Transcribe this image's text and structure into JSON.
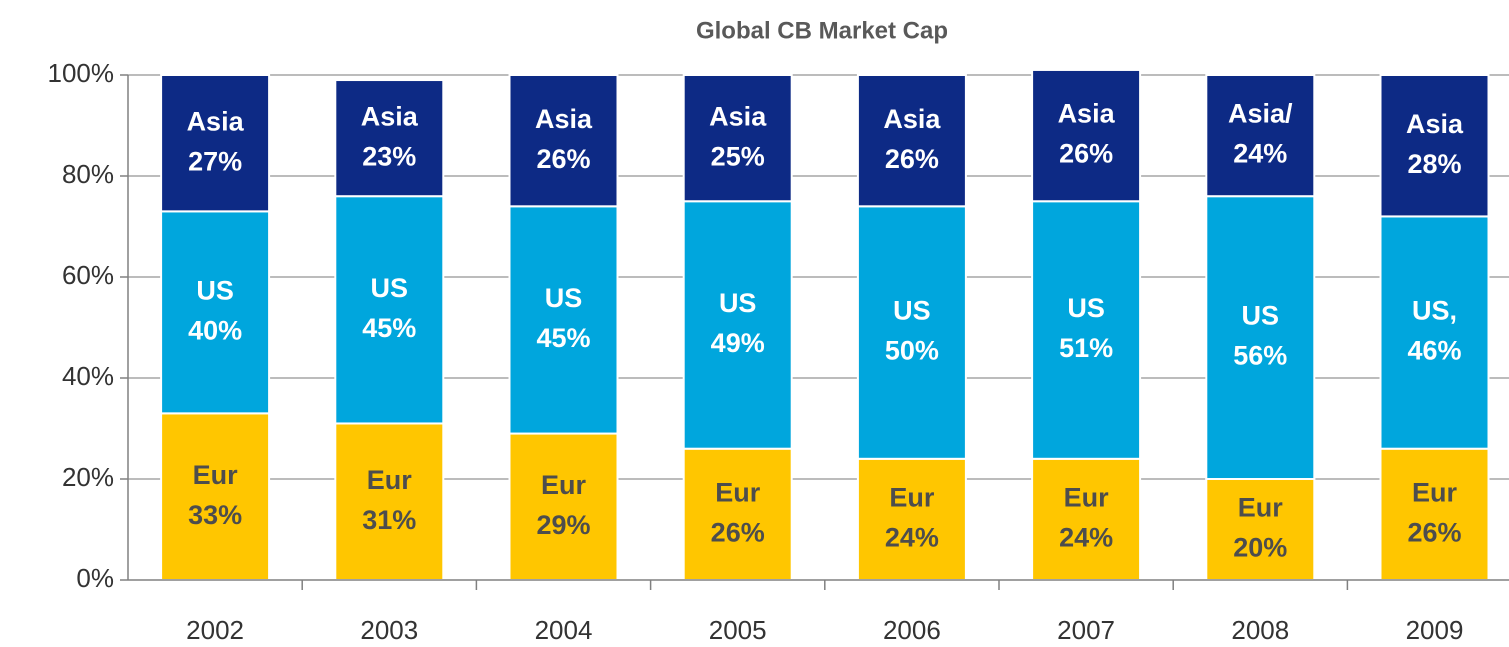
{
  "chart_data": {
    "type": "stacked_bar",
    "title": "Global CB Market Cap",
    "categories": [
      "2002",
      "2003",
      "2004",
      "2005",
      "2006",
      "2007",
      "2008",
      "2009"
    ],
    "series": [
      {
        "color": "#ffc600",
        "label_color": "#4d4d4d",
        "values": [
          33,
          31,
          29,
          26,
          24,
          24,
          20,
          26
        ],
        "value_labels": [
          [
            "Eur",
            "33%"
          ],
          [
            "Eur",
            "31%"
          ],
          [
            "Eur",
            "29%"
          ],
          [
            "Eur",
            "26%"
          ],
          [
            "Eur",
            "24%"
          ],
          [
            "Eur",
            "24%"
          ],
          [
            "Eur",
            "20%"
          ],
          [
            "Eur",
            "26%"
          ]
        ]
      },
      {
        "color": "#00a6dd",
        "label_color": "#ffffff",
        "values": [
          40,
          45,
          45,
          49,
          50,
          51,
          56,
          46
        ],
        "value_labels": [
          [
            "US",
            "40%"
          ],
          [
            "US",
            "45%"
          ],
          [
            "US",
            "45%"
          ],
          [
            "US",
            "49%"
          ],
          [
            "US",
            "50%"
          ],
          [
            "US",
            "51%"
          ],
          [
            "US",
            "56%"
          ],
          [
            "US,",
            "46%"
          ]
        ]
      },
      {
        "color": "#0d2a85",
        "label_color": "#ffffff",
        "values": [
          27,
          23,
          26,
          25,
          26,
          26,
          24,
          28
        ],
        "value_labels": [
          [
            "Asia",
            "27%"
          ],
          [
            "Asia",
            "23%"
          ],
          [
            "Asia",
            "26%"
          ],
          [
            "Asia",
            "25%"
          ],
          [
            "Asia",
            "26%"
          ],
          [
            "Asia",
            "26%"
          ],
          [
            "Asia/",
            "24%"
          ],
          [
            "Asia",
            "28%"
          ]
        ]
      }
    ],
    "ylim": [
      0,
      100
    ],
    "yticks": [
      {
        "value": 0,
        "label": "0%"
      },
      {
        "value": 20,
        "label": "20%"
      },
      {
        "value": 40,
        "label": "40%"
      },
      {
        "value": 60,
        "label": "60%"
      },
      {
        "value": 80,
        "label": "80%"
      },
      {
        "value": 100,
        "label": "100%"
      }
    ],
    "grid": true
  }
}
